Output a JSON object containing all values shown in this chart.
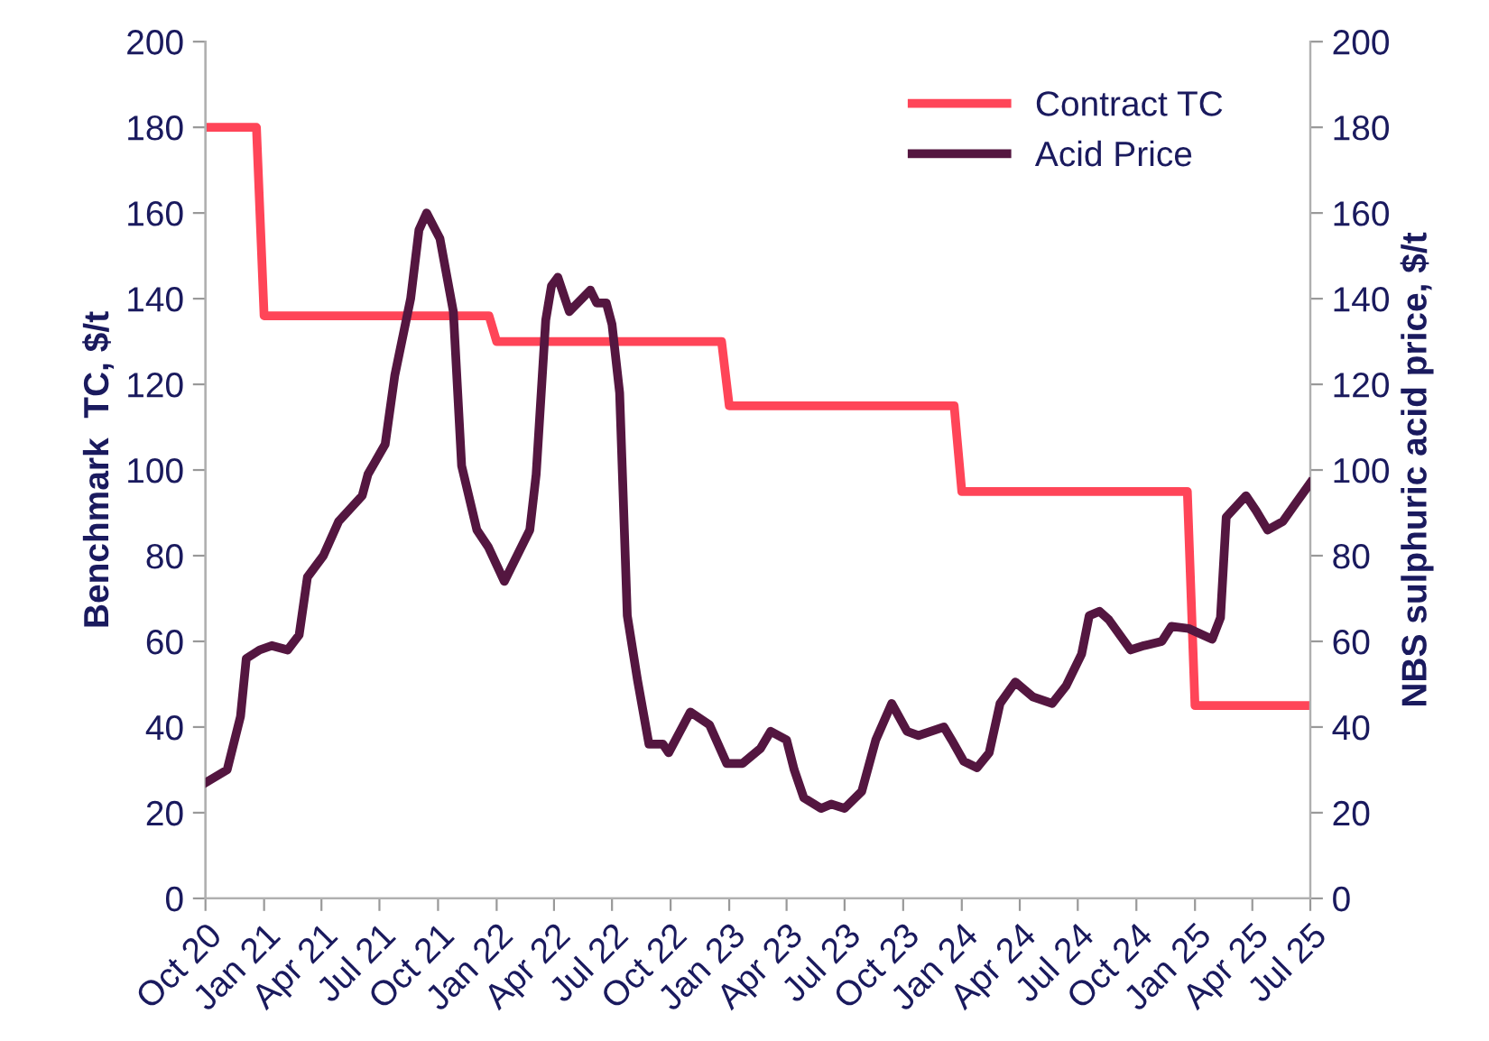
{
  "chart_data": {
    "type": "line",
    "ylabel": "Benchmark  TC, $/t",
    "y2label": "NBS sulphuric acid price, $/t",
    "xlim": [
      "2020-10-01",
      "2025-07-01"
    ],
    "xticks": [
      {
        "value": "2020-10-01",
        "label": "Oct 20"
      },
      {
        "value": "2021-01-01",
        "label": "Jan 21"
      },
      {
        "value": "2021-04-01",
        "label": "Apr 21"
      },
      {
        "value": "2021-07-01",
        "label": "Jul 21"
      },
      {
        "value": "2021-10-01",
        "label": "Oct 21"
      },
      {
        "value": "2022-01-01",
        "label": "Jan 22"
      },
      {
        "value": "2022-04-01",
        "label": "Apr 22"
      },
      {
        "value": "2022-07-01",
        "label": "Jul 22"
      },
      {
        "value": "2022-10-01",
        "label": "Oct 22"
      },
      {
        "value": "2023-01-01",
        "label": "Jan 23"
      },
      {
        "value": "2023-04-01",
        "label": "Apr 23"
      },
      {
        "value": "2023-07-01",
        "label": "Jul 23"
      },
      {
        "value": "2023-10-01",
        "label": "Oct 23"
      },
      {
        "value": "2024-01-01",
        "label": "Jan 24"
      },
      {
        "value": "2024-04-01",
        "label": "Apr 24"
      },
      {
        "value": "2024-07-01",
        "label": "Jul 24"
      },
      {
        "value": "2024-10-01",
        "label": "Oct 24"
      },
      {
        "value": "2025-01-01",
        "label": "Jan 25"
      },
      {
        "value": "2025-04-01",
        "label": "Apr 25"
      },
      {
        "value": "2025-07-01",
        "label": "Jul 25"
      }
    ],
    "ylim": [
      0,
      200
    ],
    "yticks": [
      0,
      20,
      40,
      60,
      80,
      100,
      120,
      140,
      160,
      180,
      200
    ],
    "y2lim": [
      0,
      200
    ],
    "y2ticks": [
      0,
      20,
      40,
      60,
      80,
      100,
      120,
      140,
      160,
      180,
      200
    ],
    "grid": false,
    "legend": "top right",
    "marker": "none",
    "line_style": "solid",
    "series": [
      {
        "name": "Contract TC",
        "color": "#ff4558",
        "x": [
          "2020-10-01",
          "2020-12-20",
          "2021-01-01",
          "2021-12-20",
          "2022-01-01",
          "2022-12-20",
          "2023-01-01",
          "2023-12-20",
          "2024-01-01",
          "2024-12-20",
          "2025-01-01",
          "2025-07-01"
        ],
        "values": [
          180,
          180,
          136,
          136,
          130,
          130,
          115,
          115,
          95,
          95,
          45,
          45
        ]
      },
      {
        "name": "Acid Price",
        "color": "#541640",
        "axis": "y2",
        "x": [
          "2020-10-01",
          "2020-11-04",
          "2020-11-25",
          "2020-12-04",
          "2020-12-25",
          "2021-01-13",
          "2021-02-07",
          "2021-02-25",
          "2021-03-10",
          "2021-04-04",
          "2021-04-28",
          "2021-06-04",
          "2021-06-13",
          "2021-07-10",
          "2021-07-25",
          "2021-08-19",
          "2021-09-01",
          "2021-09-13",
          "2021-10-04",
          "2021-10-25",
          "2021-11-07",
          "2021-12-01",
          "2021-12-19",
          "2022-01-13",
          "2022-02-22",
          "2022-03-04",
          "2022-03-19",
          "2022-03-28",
          "2022-04-07",
          "2022-04-25",
          "2022-05-28",
          "2022-06-07",
          "2022-06-22",
          "2022-07-01",
          "2022-07-13",
          "2022-07-25",
          "2022-08-10",
          "2022-08-28",
          "2022-09-19",
          "2022-09-28",
          "2022-11-01",
          "2022-12-01",
          "2022-12-28",
          "2023-01-22",
          "2023-02-19",
          "2023-03-07",
          "2023-04-01",
          "2023-04-13",
          "2023-04-28",
          "2023-05-25",
          "2023-06-10",
          "2023-07-01",
          "2023-07-28",
          "2023-08-19",
          "2023-09-13",
          "2023-10-07",
          "2023-10-25",
          "2023-12-04",
          "2023-12-16",
          "2024-01-04",
          "2024-01-25",
          "2024-02-13",
          "2024-03-01",
          "2024-03-25",
          "2024-04-22",
          "2024-05-22",
          "2024-06-13",
          "2024-07-07",
          "2024-07-19",
          "2024-08-04",
          "2024-08-19",
          "2024-09-22",
          "2024-10-13",
          "2024-11-10",
          "2024-11-25",
          "2024-12-22",
          "2025-01-28",
          "2025-02-10",
          "2025-02-19",
          "2025-03-22",
          "2025-04-07",
          "2025-04-25",
          "2025-05-19",
          "2025-06-07",
          "2025-07-01"
        ],
        "values": [
          27,
          30,
          42.5,
          56,
          58,
          59,
          58,
          61.5,
          75,
          80,
          88,
          94,
          99,
          106,
          122,
          140,
          156,
          160,
          154,
          137,
          101,
          86,
          82,
          74,
          86,
          99,
          135,
          143,
          145,
          137,
          142,
          139,
          139,
          134,
          118,
          66,
          51,
          36,
          36,
          34,
          43.5,
          40.5,
          31.5,
          31.5,
          35,
          39,
          37,
          30,
          23.5,
          21,
          22,
          21,
          25,
          37,
          45.5,
          39,
          38,
          40,
          37,
          32,
          30.5,
          34,
          45.5,
          50.5,
          47,
          45.5,
          49.7,
          57,
          66,
          67,
          65,
          58,
          59,
          60,
          63.5,
          63,
          60.5,
          65.5,
          89,
          94,
          90.5,
          86,
          88,
          92,
          97
        ]
      }
    ]
  }
}
